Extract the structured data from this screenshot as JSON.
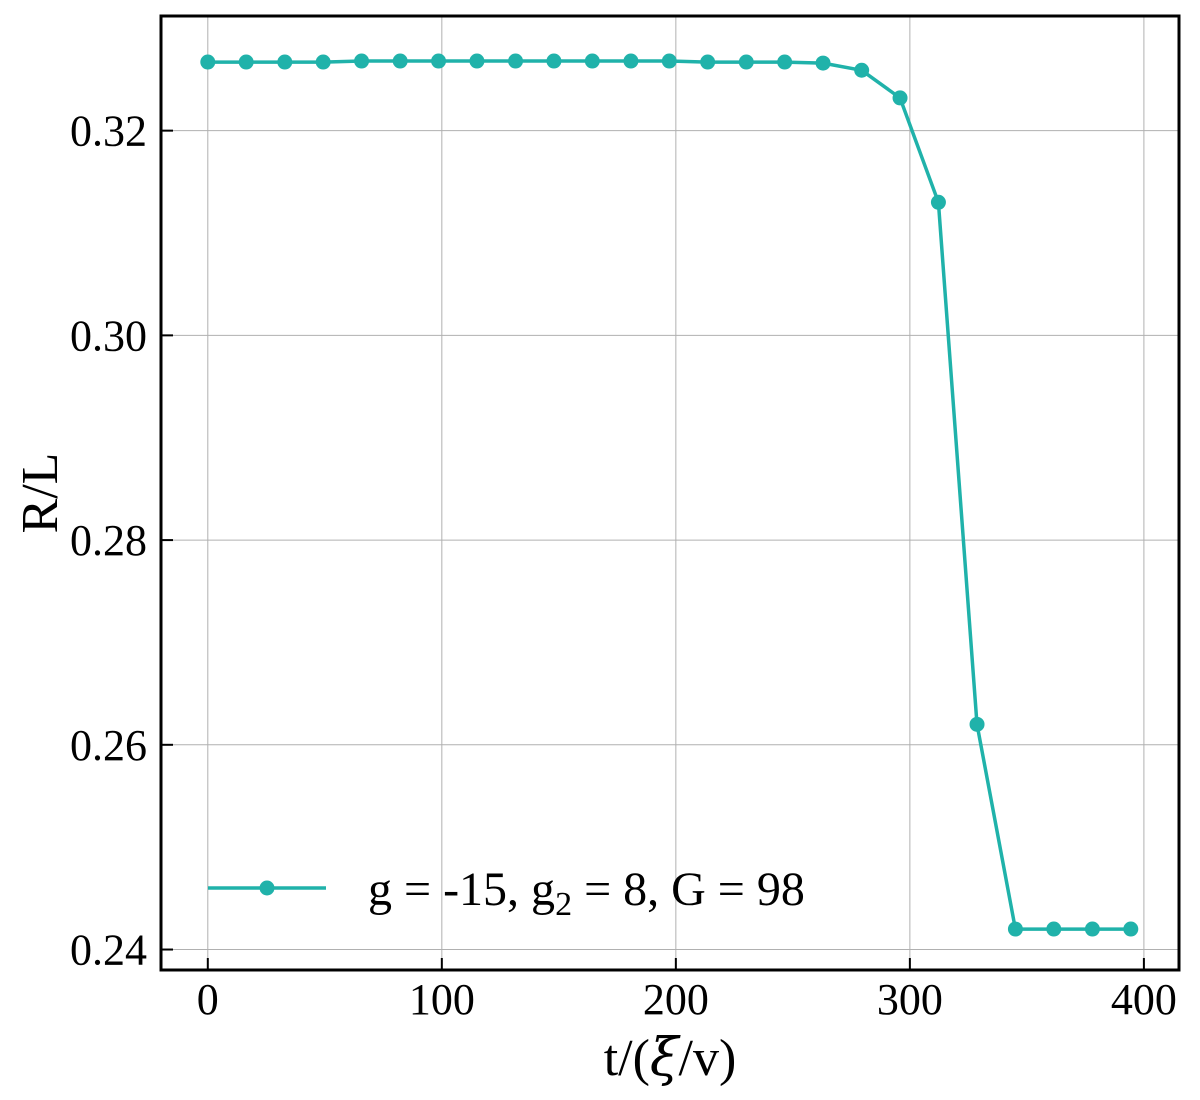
{
  "chart_data": {
    "type": "line",
    "xlabel_prefix": "t/(",
    "xlabel_symbol": "ξ",
    "xlabel_suffix": "/v)",
    "ylabel": "R/L",
    "xlim": [
      -20,
      415
    ],
    "ylim": [
      0.238,
      0.3312
    ],
    "xticks": [
      0,
      100,
      200,
      300,
      400
    ],
    "xtick_labels": [
      "0",
      "100",
      "200",
      "300",
      "400"
    ],
    "yticks": [
      0.24,
      0.26,
      0.28,
      0.3,
      0.32
    ],
    "ytick_labels": [
      "0.24",
      "0.26",
      "0.28",
      "0.30",
      "0.32"
    ],
    "grid": true,
    "legend_position": "lower-left",
    "series": [
      {
        "legend": {
          "prefix": "g = -15, g",
          "subscript": "2",
          "suffix": " = 8, G = 98"
        },
        "color": "#20b2aa",
        "marker": "circle",
        "x": [
          0,
          16.4,
          32.9,
          49.3,
          65.7,
          82.2,
          98.6,
          115,
          131.5,
          147.9,
          164.3,
          180.8,
          197.2,
          213.6,
          230.1,
          246.5,
          262.9,
          279.4,
          295.8,
          312.2,
          328.7,
          345.1,
          361.5,
          378,
          394.4
        ],
        "y": [
          0.3267,
          0.3267,
          0.3267,
          0.3267,
          0.3268,
          0.3268,
          0.3268,
          0.3268,
          0.3268,
          0.3268,
          0.3268,
          0.3268,
          0.3268,
          0.3267,
          0.3267,
          0.3267,
          0.3266,
          0.3259,
          0.3232,
          0.313,
          0.262,
          0.242,
          0.242,
          0.242,
          0.242
        ]
      }
    ]
  }
}
